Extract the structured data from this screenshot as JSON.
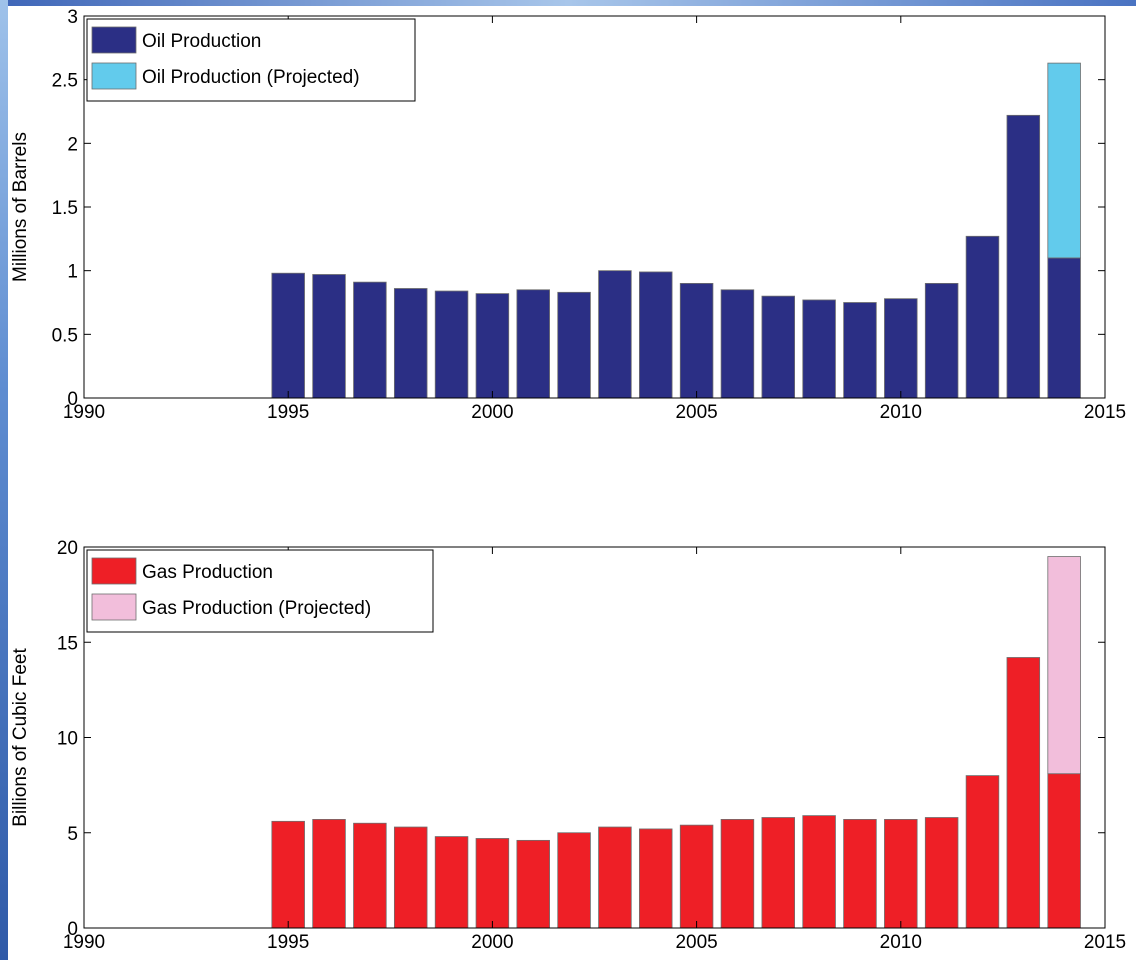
{
  "chart_data": [
    {
      "type": "bar",
      "stacked": true,
      "ylabel": "Millions of Barrels",
      "xlim": [
        1990,
        2015
      ],
      "ylim": [
        0,
        3
      ],
      "xticks": [
        1990,
        1995,
        2000,
        2005,
        2010,
        2015
      ],
      "yticks": [
        0,
        0.5,
        1,
        1.5,
        2,
        2.5,
        3
      ],
      "ytick_labels": [
        "0",
        "0.5",
        "1",
        "1.5",
        "2",
        "2.5",
        "3"
      ],
      "x": [
        1995,
        1996,
        1997,
        1998,
        1999,
        2000,
        2001,
        2002,
        2003,
        2004,
        2005,
        2006,
        2007,
        2008,
        2009,
        2010,
        2011,
        2012,
        2013,
        2014
      ],
      "series": [
        {
          "name": "Oil Production",
          "color": "#2b2f85",
          "values": [
            0.98,
            0.97,
            0.91,
            0.86,
            0.84,
            0.82,
            0.85,
            0.83,
            1.0,
            0.99,
            0.9,
            0.85,
            0.8,
            0.77,
            0.75,
            0.78,
            0.9,
            1.27,
            2.22,
            1.1
          ]
        },
        {
          "name": "Oil Production (Projected)",
          "color": "#62cbec",
          "values": [
            0,
            0,
            0,
            0,
            0,
            0,
            0,
            0,
            0,
            0,
            0,
            0,
            0,
            0,
            0,
            0,
            0,
            0,
            0,
            1.53
          ]
        }
      ],
      "legend_position": "top-left",
      "grid": false
    },
    {
      "type": "bar",
      "stacked": true,
      "ylabel": "Billions of Cubic Feet",
      "xlim": [
        1990,
        2015
      ],
      "ylim": [
        0,
        20
      ],
      "xticks": [
        1990,
        1995,
        2000,
        2005,
        2010,
        2015
      ],
      "yticks": [
        0,
        5,
        10,
        15,
        20
      ],
      "ytick_labels": [
        "0",
        "5",
        "10",
        "15",
        "20"
      ],
      "x": [
        1995,
        1996,
        1997,
        1998,
        1999,
        2000,
        2001,
        2002,
        2003,
        2004,
        2005,
        2006,
        2007,
        2008,
        2009,
        2010,
        2011,
        2012,
        2013,
        2014
      ],
      "series": [
        {
          "name": "Gas Production",
          "color": "#ee1f26",
          "values": [
            5.6,
            5.7,
            5.5,
            5.3,
            4.8,
            4.7,
            4.6,
            5.0,
            5.3,
            5.2,
            5.4,
            5.7,
            5.8,
            5.9,
            5.7,
            5.7,
            5.8,
            8.0,
            14.2,
            8.1
          ]
        },
        {
          "name": "Gas Production (Projected)",
          "color": "#f2bedb",
          "values": [
            0,
            0,
            0,
            0,
            0,
            0,
            0,
            0,
            0,
            0,
            0,
            0,
            0,
            0,
            0,
            0,
            0,
            0,
            0,
            11.4
          ]
        }
      ],
      "legend_position": "top-left",
      "grid": false
    }
  ]
}
